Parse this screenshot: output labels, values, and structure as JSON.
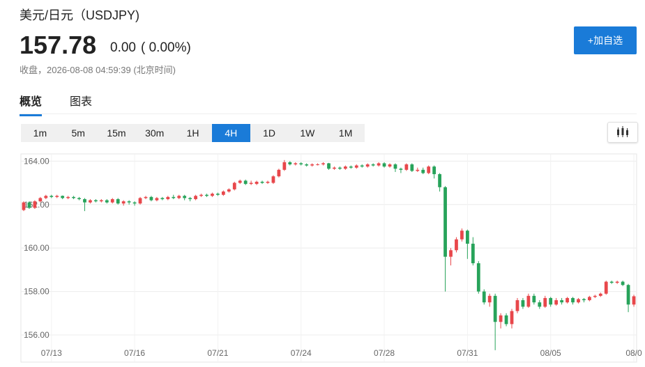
{
  "header": {
    "title": "美元/日元（USDJPY)",
    "price": "157.78",
    "change": "0.00",
    "change_pct": "( 0.00%)",
    "status": "收盘，2026-08-08 04:59:39 (北京时间)",
    "button": "+加自选"
  },
  "tabs": [
    "概览",
    "图表"
  ],
  "periods": [
    "1m",
    "5m",
    "15m",
    "30m",
    "1H",
    "4H",
    "1D",
    "1W",
    "1M"
  ],
  "active_period": "4H",
  "chart_data": {
    "type": "candlestick",
    "up_color": "#e8474b",
    "down_color": "#27a35a",
    "grid": true,
    "ylim": [
      154.75,
      164.3
    ],
    "yticks": [
      {
        "value": 156,
        "label": "156.00"
      },
      {
        "value": 158,
        "label": "158.00"
      },
      {
        "value": 160,
        "label": "160.00"
      },
      {
        "value": 162,
        "label": "162.00"
      },
      {
        "value": 164,
        "label": "164.00"
      }
    ],
    "categories": [
      null,
      null,
      null,
      null,
      null,
      "07/13",
      null,
      null,
      null,
      null,
      null,
      null,
      null,
      null,
      null,
      null,
      null,
      null,
      null,
      null,
      "07/16",
      null,
      null,
      null,
      null,
      null,
      null,
      null,
      null,
      null,
      null,
      null,
      null,
      null,
      null,
      "07/21",
      null,
      null,
      null,
      null,
      null,
      null,
      null,
      null,
      null,
      null,
      null,
      null,
      null,
      null,
      "07/24",
      null,
      null,
      null,
      null,
      null,
      null,
      null,
      null,
      null,
      null,
      null,
      null,
      null,
      null,
      "07/28",
      null,
      null,
      null,
      null,
      null,
      null,
      null,
      null,
      null,
      null,
      null,
      null,
      null,
      null,
      "07/31",
      null,
      null,
      null,
      null,
      null,
      null,
      null,
      null,
      null,
      null,
      null,
      null,
      null,
      null,
      "08/05",
      null,
      null,
      null,
      null,
      null,
      null,
      null,
      null,
      null,
      null,
      null,
      null,
      null,
      null,
      "08/0"
    ],
    "open": [
      161.75,
      162.1,
      161.85,
      162.15,
      162.3,
      162.4,
      162.35,
      162.4,
      162.3,
      162.35,
      162.3,
      162.25,
      162.1,
      162.2,
      162.15,
      162.2,
      162.1,
      162.25,
      162.05,
      162.15,
      162.1,
      162.05,
      162.3,
      162.35,
      162.2,
      162.3,
      162.25,
      162.35,
      162.3,
      162.4,
      162.3,
      162.25,
      162.4,
      162.45,
      162.4,
      162.5,
      162.45,
      162.6,
      162.7,
      163.0,
      163.1,
      162.95,
      162.95,
      163.05,
      163.0,
      163.0,
      163.3,
      163.6,
      163.95,
      163.85,
      163.9,
      163.85,
      163.8,
      163.85,
      163.85,
      163.9,
      163.65,
      163.7,
      163.65,
      163.75,
      163.7,
      163.8,
      163.75,
      163.85,
      163.8,
      163.9,
      163.75,
      163.85,
      163.65,
      163.6,
      163.85,
      163.55,
      163.6,
      163.45,
      163.75,
      163.4,
      162.8,
      159.6,
      159.9,
      160.4,
      160.8,
      160.2,
      159.3,
      158.0,
      157.5,
      157.8,
      156.6,
      156.9,
      156.5,
      157.1,
      157.6,
      157.3,
      157.8,
      157.5,
      157.3,
      157.7,
      157.4,
      157.6,
      157.5,
      157.7,
      157.5,
      157.65,
      157.6,
      157.75,
      157.8,
      157.9,
      158.45,
      158.4,
      158.45,
      158.3,
      157.4
    ],
    "high": [
      162.15,
      162.15,
      162.2,
      162.35,
      162.45,
      162.45,
      162.45,
      162.42,
      162.4,
      162.4,
      162.35,
      162.3,
      162.25,
      162.25,
      162.25,
      162.25,
      162.3,
      162.3,
      162.2,
      162.2,
      162.15,
      162.35,
      162.4,
      162.4,
      162.35,
      162.35,
      162.4,
      162.45,
      162.45,
      162.45,
      162.35,
      162.45,
      162.5,
      162.5,
      162.55,
      162.55,
      162.65,
      162.75,
      163.05,
      163.15,
      163.15,
      163.1,
      163.1,
      163.1,
      163.1,
      163.35,
      163.65,
      164.05,
      164.0,
      163.95,
      163.95,
      163.9,
      163.9,
      163.9,
      163.95,
      163.92,
      163.75,
      163.75,
      163.8,
      163.8,
      163.85,
      163.85,
      163.9,
      163.9,
      163.95,
      163.95,
      163.9,
      163.9,
      163.7,
      163.9,
      163.9,
      163.7,
      163.7,
      163.8,
      163.8,
      163.45,
      162.85,
      160.0,
      160.5,
      160.9,
      160.85,
      160.5,
      159.4,
      158.1,
      157.9,
      157.9,
      157.0,
      157.0,
      157.2,
      157.7,
      157.7,
      157.9,
      157.9,
      157.6,
      157.8,
      157.75,
      157.7,
      157.7,
      157.75,
      157.75,
      157.7,
      157.7,
      157.8,
      157.85,
      157.95,
      158.5,
      158.5,
      158.5,
      158.5,
      158.35,
      157.85
    ],
    "low": [
      161.7,
      161.8,
      161.8,
      162.1,
      162.25,
      162.3,
      162.3,
      162.25,
      162.25,
      162.25,
      162.2,
      161.7,
      162.05,
      162.1,
      162.1,
      162.05,
      162.05,
      162.0,
      161.95,
      162.0,
      161.95,
      162.0,
      162.25,
      162.15,
      162.15,
      162.2,
      162.2,
      162.25,
      162.25,
      162.2,
      162.15,
      162.2,
      162.35,
      162.35,
      162.35,
      162.4,
      162.4,
      162.55,
      162.65,
      162.95,
      162.9,
      162.9,
      162.9,
      162.95,
      162.95,
      162.95,
      163.25,
      163.55,
      163.8,
      163.8,
      163.8,
      163.75,
      163.75,
      163.8,
      163.8,
      163.6,
      163.6,
      163.6,
      163.6,
      163.65,
      163.65,
      163.7,
      163.7,
      163.75,
      163.75,
      163.7,
      163.7,
      163.5,
      163.45,
      163.55,
      163.5,
      163.5,
      163.4,
      163.4,
      163.2,
      162.6,
      158.0,
      159.2,
      159.8,
      160.3,
      159.5,
      159.2,
      157.9,
      157.4,
      157.3,
      155.3,
      156.3,
      156.4,
      156.3,
      157.0,
      157.2,
      157.25,
      157.4,
      157.2,
      157.25,
      157.3,
      157.35,
      157.4,
      157.45,
      157.4,
      157.45,
      157.5,
      157.55,
      157.7,
      157.75,
      157.85,
      158.35,
      158.35,
      158.25,
      157.05,
      157.3
    ],
    "close": [
      162.1,
      161.85,
      162.15,
      162.3,
      162.4,
      162.35,
      162.4,
      162.3,
      162.35,
      162.3,
      162.25,
      162.1,
      162.2,
      162.15,
      162.2,
      162.1,
      162.25,
      162.05,
      162.15,
      162.1,
      162.05,
      162.3,
      162.35,
      162.2,
      162.3,
      162.25,
      162.35,
      162.3,
      162.4,
      162.3,
      162.25,
      162.4,
      162.45,
      162.4,
      162.5,
      162.45,
      162.6,
      162.7,
      163.0,
      163.1,
      162.95,
      163.0,
      163.05,
      163.0,
      163.05,
      163.3,
      163.6,
      163.95,
      163.85,
      163.9,
      163.85,
      163.8,
      163.85,
      163.85,
      163.9,
      163.65,
      163.7,
      163.65,
      163.75,
      163.7,
      163.8,
      163.75,
      163.85,
      163.8,
      163.9,
      163.75,
      163.85,
      163.65,
      163.6,
      163.85,
      163.55,
      163.6,
      163.45,
      163.75,
      163.4,
      162.8,
      159.6,
      159.9,
      160.4,
      160.8,
      160.2,
      159.3,
      158.0,
      157.5,
      157.8,
      156.6,
      156.9,
      156.5,
      157.1,
      157.6,
      157.3,
      157.8,
      157.5,
      157.3,
      157.7,
      157.4,
      157.6,
      157.5,
      157.7,
      157.5,
      157.65,
      157.6,
      157.75,
      157.8,
      157.9,
      158.45,
      158.4,
      158.45,
      158.3,
      157.4,
      157.78
    ]
  }
}
